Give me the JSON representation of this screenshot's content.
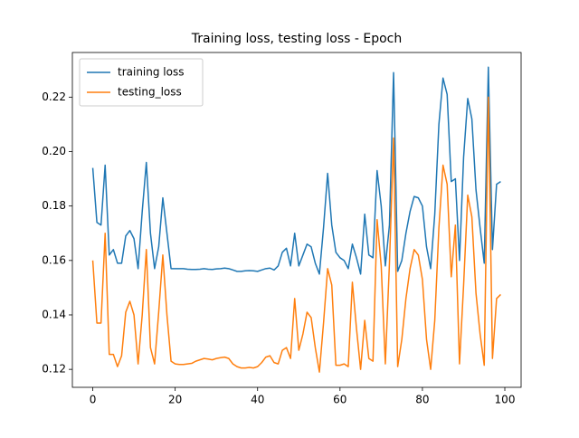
{
  "chart_data": {
    "type": "line",
    "title": "Training loss, testing loss - Epoch",
    "x": [
      0,
      1,
      2,
      3,
      4,
      5,
      6,
      7,
      8,
      9,
      10,
      11,
      12,
      13,
      14,
      15,
      16,
      17,
      18,
      19,
      20,
      21,
      22,
      23,
      24,
      25,
      26,
      27,
      28,
      29,
      30,
      31,
      32,
      33,
      34,
      35,
      36,
      37,
      38,
      39,
      40,
      41,
      42,
      43,
      44,
      45,
      46,
      47,
      48,
      49,
      50,
      51,
      52,
      53,
      54,
      55,
      56,
      57,
      58,
      59,
      60,
      61,
      62,
      63,
      64,
      65,
      66,
      67,
      68,
      69,
      70,
      71,
      72,
      73,
      74,
      75,
      76,
      77,
      78,
      79,
      80,
      81,
      82,
      83,
      84,
      85,
      86,
      87,
      88,
      89,
      90,
      91,
      92,
      93,
      94,
      95,
      96,
      97,
      98,
      99
    ],
    "series": [
      {
        "name": "training loss",
        "color": "#1f77b4",
        "values": [
          0.194,
          0.174,
          0.173,
          0.195,
          0.162,
          0.164,
          0.159,
          0.159,
          0.169,
          0.171,
          0.168,
          0.157,
          0.178,
          0.196,
          0.17,
          0.157,
          0.165,
          0.183,
          0.17,
          0.157,
          0.157,
          0.157,
          0.157,
          0.1568,
          0.1567,
          0.1567,
          0.1568,
          0.157,
          0.1568,
          0.1567,
          0.1569,
          0.157,
          0.1572,
          0.157,
          0.1565,
          0.156,
          0.156,
          0.1562,
          0.1563,
          0.1562,
          0.156,
          0.1565,
          0.157,
          0.1572,
          0.1565,
          0.158,
          0.163,
          0.1645,
          0.158,
          0.17,
          0.158,
          0.162,
          0.166,
          0.165,
          0.159,
          0.155,
          0.172,
          0.192,
          0.173,
          0.163,
          0.161,
          0.16,
          0.157,
          0.166,
          0.161,
          0.155,
          0.177,
          0.162,
          0.161,
          0.193,
          0.18,
          0.158,
          0.173,
          0.229,
          0.156,
          0.16,
          0.17,
          0.178,
          0.1835,
          0.183,
          0.18,
          0.165,
          0.157,
          0.177,
          0.21,
          0.227,
          0.221,
          0.189,
          0.19,
          0.16,
          0.198,
          0.2195,
          0.212,
          0.186,
          0.172,
          0.159,
          0.231,
          0.164,
          0.188,
          0.189
        ]
      },
      {
        "name": "testing_loss",
        "color": "#ff7f0e",
        "values": [
          0.16,
          0.137,
          0.137,
          0.17,
          0.1255,
          0.1255,
          0.121,
          0.125,
          0.141,
          0.145,
          0.14,
          0.122,
          0.14,
          0.164,
          0.128,
          0.122,
          0.141,
          0.162,
          0.14,
          0.123,
          0.122,
          0.1218,
          0.1218,
          0.122,
          0.1222,
          0.123,
          0.1235,
          0.124,
          0.1238,
          0.1235,
          0.124,
          0.1243,
          0.1245,
          0.124,
          0.122,
          0.121,
          0.1205,
          0.1205,
          0.1207,
          0.1205,
          0.121,
          0.1225,
          0.1245,
          0.125,
          0.1225,
          0.122,
          0.127,
          0.128,
          0.124,
          0.146,
          0.127,
          0.133,
          0.141,
          0.139,
          0.128,
          0.119,
          0.137,
          0.157,
          0.151,
          0.1215,
          0.1215,
          0.122,
          0.121,
          0.152,
          0.135,
          0.12,
          0.138,
          0.124,
          0.123,
          0.175,
          0.158,
          0.122,
          0.159,
          0.205,
          0.121,
          0.131,
          0.146,
          0.157,
          0.164,
          0.162,
          0.153,
          0.131,
          0.12,
          0.138,
          0.172,
          0.195,
          0.188,
          0.154,
          0.173,
          0.122,
          0.151,
          0.184,
          0.176,
          0.148,
          0.133,
          0.1215,
          0.22,
          0.124,
          0.146,
          0.1475
        ]
      }
    ],
    "xlim": [
      -4.95,
      103.95
    ],
    "xticks": [
      0,
      20,
      40,
      60,
      80,
      100
    ],
    "ylim": [
      0.1134,
      0.2364
    ],
    "yticks": [
      0.12,
      0.14,
      0.16,
      0.18,
      {
        "value": 0.2,
        "label": "0.20"
      },
      0.22
    ],
    "grid": false,
    "legend": "upper left"
  }
}
